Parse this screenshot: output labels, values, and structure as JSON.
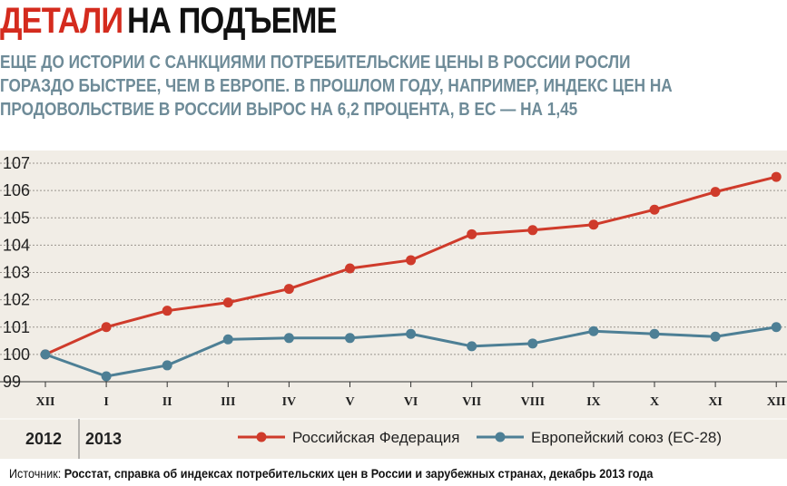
{
  "header": {
    "title_highlight": "ДЕТАЛИ",
    "title_rest": "НА ПОДЪЕМЕ",
    "subtitle": "ЕЩЕ ДО ИСТОРИИ С САНКЦИЯМИ ПОТРЕБИТЕЛЬСКИЕ ЦЕНЫ В РОССИИ РОСЛИ ГОРАЗДО БЫСТРЕЕ, ЧЕМ В ЕВРОПЕ. В ПРОШЛОМ ГОДУ, НАПРИМЕР, ИНДЕКС ЦЕН НА ПРОДОВОЛЬСТВИЕ В РОССИИ ВЫРОС НА 6,2 ПРОЦЕНТА, В ЕС — НА 1,45"
  },
  "colors": {
    "accent": "#d42b1e",
    "russia": "#cf3b2b",
    "eu": "#4d7f95",
    "panel_bg": "#f1ede6",
    "subtitle": "#6e8b98"
  },
  "chart_data": {
    "type": "line",
    "categories": [
      "XII",
      "I",
      "II",
      "III",
      "IV",
      "V",
      "VI",
      "VII",
      "VIII",
      "IX",
      "X",
      "XI",
      "XII"
    ],
    "years": [
      {
        "label": "2012",
        "from_index": 0
      },
      {
        "label": "2013",
        "from_index": 1
      }
    ],
    "y_ticks": [
      99,
      100,
      101,
      102,
      103,
      104,
      105,
      106,
      107
    ],
    "ylim": [
      99,
      107
    ],
    "grid": true,
    "legend_position": "bottom",
    "series": [
      {
        "name": "Российская Федерация",
        "color": "#cf3b2b",
        "values": [
          100.0,
          101.0,
          101.6,
          101.9,
          102.4,
          103.15,
          103.45,
          104.4,
          104.55,
          104.75,
          105.3,
          105.95,
          106.5
        ]
      },
      {
        "name": "Европейский союз (ЕС-28)",
        "color": "#4d7f95",
        "values": [
          100.0,
          99.2,
          99.6,
          100.55,
          100.6,
          100.6,
          100.75,
          100.3,
          100.4,
          100.85,
          100.75,
          100.65,
          101.0
        ]
      }
    ]
  },
  "source": {
    "prefix": "Источник: ",
    "text": "Росстат, справка об индексах потребительских цен в России и зарубежных странах, декабрь 2013 года"
  }
}
